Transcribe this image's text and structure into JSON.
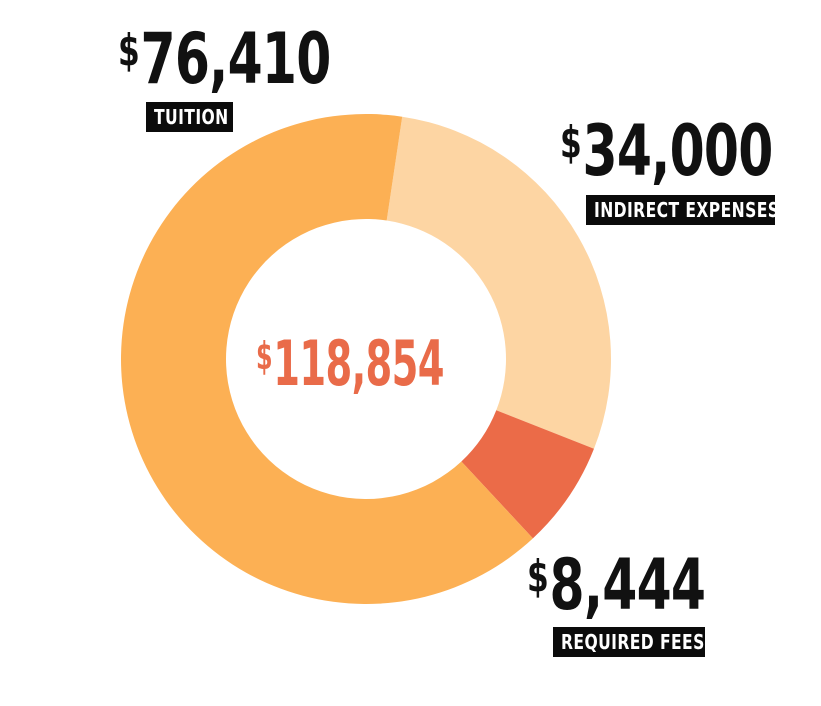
{
  "chart_data": {
    "type": "pie",
    "variant": "donut",
    "total": {
      "currency": "$",
      "value": "118,854"
    },
    "segments": [
      {
        "label": "TUITION",
        "currency": "$",
        "value_text": "76,410",
        "value": 76410,
        "color": "#fcb054"
      },
      {
        "label": "INDIRECT EXPENSES",
        "currency": "$",
        "value_text": "34,000",
        "value": 34000,
        "color": "#fdd5a3"
      },
      {
        "label": "REQUIRED FEES",
        "currency": "$",
        "value_text": "8,444",
        "value": 8444,
        "color": "#eb6b48"
      }
    ],
    "center_text_color": "#e96b49",
    "label_badge_color": "#0b0b0b"
  }
}
